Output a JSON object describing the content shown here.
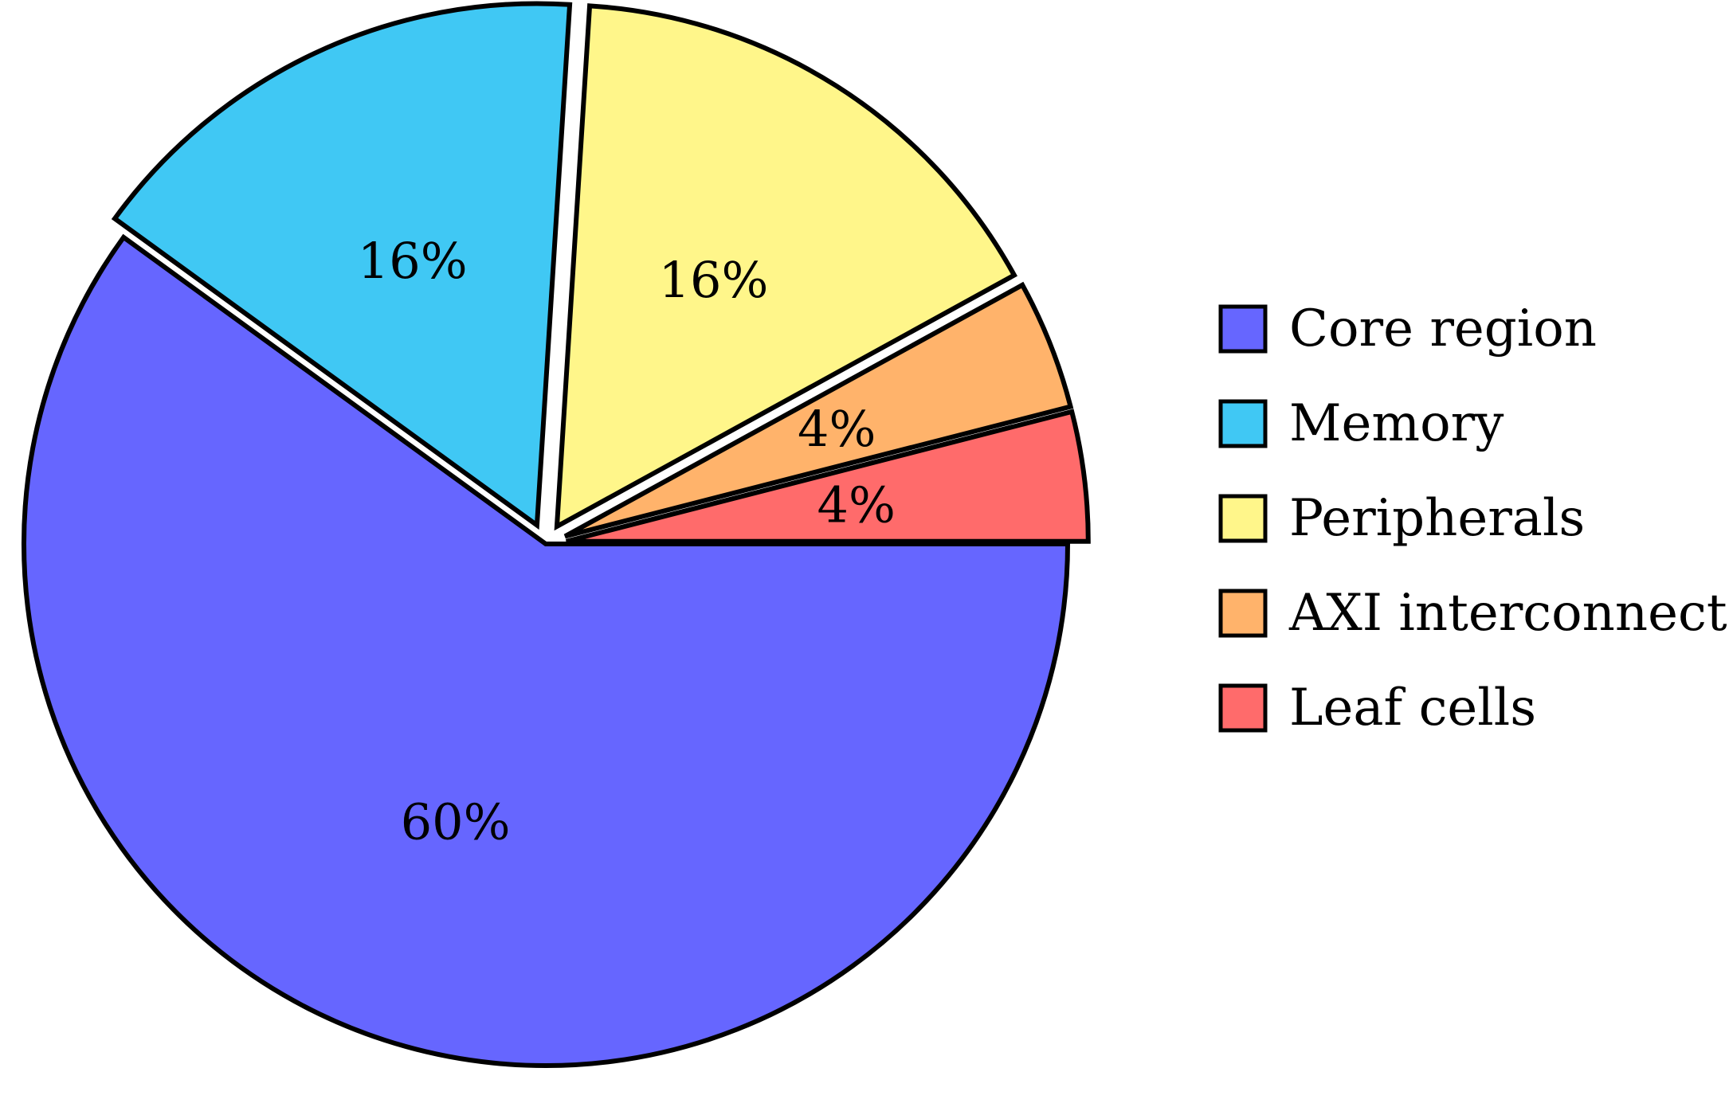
{
  "chart_data": {
    "type": "pie",
    "title": "",
    "start_angle_deg": 0,
    "direction": "clockwise",
    "legend_position": "right",
    "slices": [
      {
        "name": "Core region",
        "value": 60,
        "label": "60%",
        "color": "#6666ff",
        "exploded": false
      },
      {
        "name": "Memory",
        "value": 16,
        "label": "16%",
        "color": "#40c8f4",
        "exploded": true
      },
      {
        "name": "Peripherals",
        "value": 16,
        "label": "16%",
        "color": "#fff68a",
        "exploded": true
      },
      {
        "name": "AXI interconnects",
        "value": 4,
        "label": "4%",
        "color": "#ffb36b",
        "exploded": true
      },
      {
        "name": "Leaf cells",
        "value": 4,
        "label": "4%",
        "color": "#ff6b6b",
        "exploded": true
      }
    ]
  }
}
